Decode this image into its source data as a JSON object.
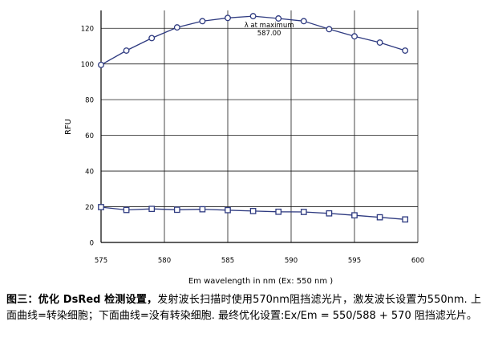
{
  "chart_data": {
    "type": "line",
    "xlabel": "Em wavelength in nm (Ex: 550 nm )",
    "ylabel": "RFU",
    "xlim": [
      575,
      600
    ],
    "ylim": [
      0,
      130
    ],
    "x_ticks": [
      575,
      580,
      585,
      590,
      595,
      600
    ],
    "y_ticks": [
      0,
      20,
      40,
      60,
      80,
      100,
      120
    ],
    "grid": true,
    "line_color": "#2e3a80",
    "annotation": {
      "line1": "λ at maximum",
      "line2": "587.00",
      "x": 587,
      "y": 120
    },
    "series": [
      {
        "marker": "circle",
        "x": [
          575,
          577,
          579,
          581,
          583,
          585,
          587,
          589,
          591,
          593,
          595,
          597,
          599
        ],
        "y": [
          99.5,
          107.5,
          114.5,
          120.5,
          124,
          125.8,
          126.8,
          125.5,
          124,
          119.5,
          115.5,
          112,
          107.5
        ]
      },
      {
        "marker": "square",
        "x": [
          575,
          577,
          579,
          581,
          583,
          585,
          587,
          589,
          591,
          593,
          595,
          597,
          599
        ],
        "y": [
          19.8,
          18.2,
          18.8,
          18.3,
          18.6,
          18.1,
          17.6,
          17.2,
          17.1,
          16.3,
          15.2,
          14.1,
          12.9
        ]
      }
    ]
  },
  "caption": {
    "label": "图三：优化 DsRed 检测设置，",
    "text": "发射波长扫描时使用570nm阻挡滤光片，激发波长设置为550nm. 上面曲线=转染细胞；下面曲线=没有转染细胞. 最终优化设置:Ex/Em = 550/588 + 570 阻挡滤光片。"
  }
}
